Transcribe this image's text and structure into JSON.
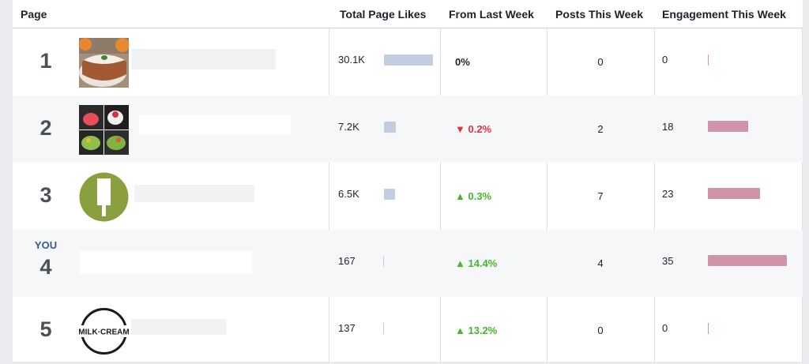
{
  "header": {
    "page": "Page",
    "total_page_likes": "Total Page Likes",
    "from_last_week": "From Last Week",
    "posts_this_week": "Posts This Week",
    "engagement_this_week": "Engagement This Week"
  },
  "rows": [
    {
      "rank": "1",
      "you": "",
      "likes": "30.1K",
      "likes_fraction": 1.0,
      "change": "0%",
      "change_direction": "neutral",
      "posts": "0",
      "engagement": "0",
      "engagement_fraction": 0.0,
      "thumb": "cake-photo"
    },
    {
      "rank": "2",
      "you": "",
      "likes": "7.2K",
      "likes_fraction": 0.24,
      "change": "▼ 0.2%",
      "change_direction": "down",
      "posts": "2",
      "engagement": "18",
      "engagement_fraction": 0.51,
      "thumb": "dessert-collage-photo"
    },
    {
      "rank": "3",
      "you": "",
      "likes": "6.5K",
      "likes_fraction": 0.22,
      "change": "▲ 0.3%",
      "change_direction": "up",
      "posts": "7",
      "engagement": "23",
      "engagement_fraction": 0.66,
      "thumb": "green-circle-logo"
    },
    {
      "rank": "4",
      "you": "YOU",
      "likes": "167",
      "likes_fraction": 0.0,
      "change": "▲ 14.4%",
      "change_direction": "up",
      "posts": "4",
      "engagement": "35",
      "engagement_fraction": 1.0,
      "thumb": ""
    },
    {
      "rank": "5",
      "you": "",
      "likes": "137",
      "likes_fraction": 0.0,
      "change": "▲ 13.2%",
      "change_direction": "up",
      "posts": "0",
      "engagement": "0",
      "engagement_fraction": 0.0,
      "thumb": "milk-cream-logo"
    }
  ],
  "logo_text": "MILK·CREAM",
  "colors": {
    "likes_bar": "#c3cde0",
    "engagement_bar": "#cf94a8",
    "up": "#42b72a",
    "down": "#e0323c",
    "you_label": "#365899"
  }
}
